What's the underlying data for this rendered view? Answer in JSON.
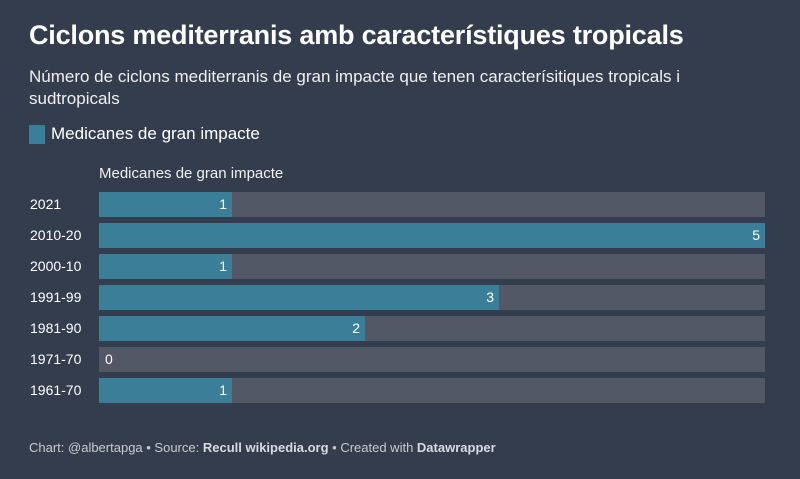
{
  "header": {
    "title": "Ciclons mediterranis amb característiques tropicals",
    "subtitle": "Número de ciclons mediterranis de gran impacte que tenen caracterísitiques tropicals i sudtropicals"
  },
  "legend": {
    "label": "Medicanes de gran impacte"
  },
  "colors": {
    "bar": "#3a7f97",
    "track": "#535866",
    "background": "#333d4d"
  },
  "chart_data": {
    "type": "bar",
    "orientation": "horizontal",
    "column_header": "Medicanes de gran impacte",
    "categories": [
      "2021",
      "2010-20",
      "2000-10",
      "1991-99",
      "1981-90",
      "1971-70",
      "1961-70"
    ],
    "series": [
      {
        "name": "Medicanes de gran impacte",
        "values": [
          1,
          5,
          1,
          3,
          2,
          0,
          1
        ]
      }
    ],
    "xlim": [
      0,
      5
    ],
    "grid": false,
    "legend_placement": "top-left"
  },
  "footer": {
    "chart_prefix": "Chart: @albertapga • Source: ",
    "source": "Recull wikipedia.org",
    "created_prefix": " • Created with ",
    "tool": "Datawrapper"
  }
}
